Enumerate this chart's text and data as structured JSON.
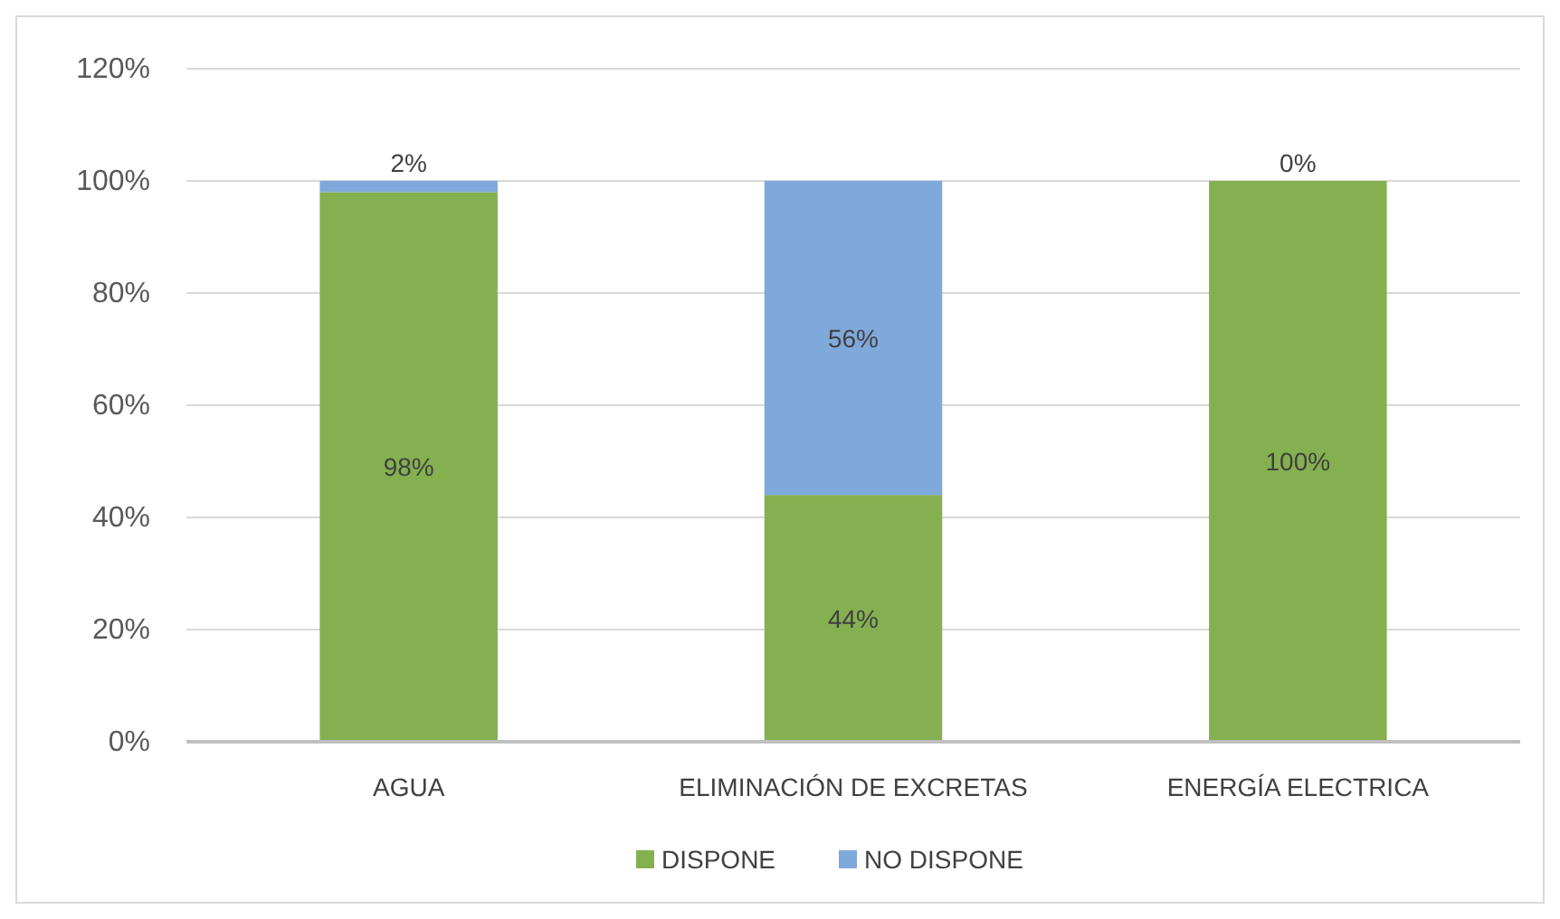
{
  "chart_data": {
    "type": "bar",
    "stacked": true,
    "categories": [
      "AGUA",
      "ELIMINACIÓN DE EXCRETAS",
      "ENERGÍA ELECTRICA"
    ],
    "series": [
      {
        "name": "DISPONE",
        "color": "#84b050",
        "values": [
          98,
          44,
          100
        ],
        "value_labels": [
          "98%",
          "44%",
          "100%"
        ]
      },
      {
        "name": "NO DISPONE",
        "color": "#7fa9db",
        "values": [
          2,
          56,
          0
        ],
        "value_labels": [
          "2%",
          "56%",
          "0%"
        ]
      }
    ],
    "ylim": [
      0,
      120
    ],
    "yticks": [
      {
        "value": 0,
        "label": "0%"
      },
      {
        "value": 20,
        "label": "20%"
      },
      {
        "value": 40,
        "label": "40%"
      },
      {
        "value": 60,
        "label": "60%"
      },
      {
        "value": 80,
        "label": "80%"
      },
      {
        "value": 100,
        "label": "100%"
      },
      {
        "value": 120,
        "label": "120%"
      }
    ],
    "grid": "y",
    "legend": "bottom"
  }
}
